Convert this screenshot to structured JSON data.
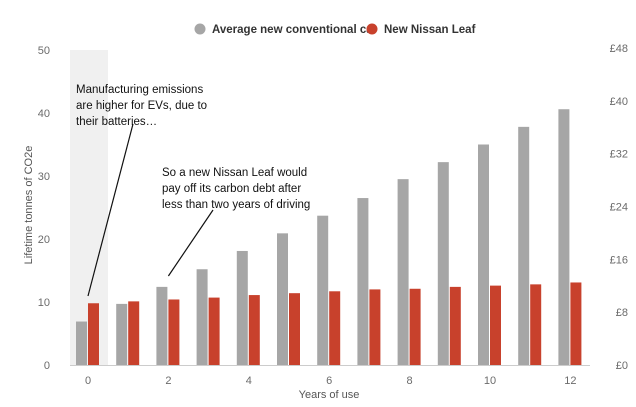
{
  "chart_data": {
    "type": "bar",
    "x": [
      0,
      1,
      2,
      3,
      4,
      5,
      6,
      7,
      8,
      9,
      10,
      11,
      12
    ],
    "xticks": [
      0,
      2,
      4,
      6,
      8,
      10,
      12
    ],
    "xlabel": "Years of use",
    "ylabel": "Lifetime tonnes of CO2e",
    "ylim": [
      0,
      50
    ],
    "yticks": [
      0,
      10,
      20,
      30,
      40,
      50
    ],
    "y2ticks": [
      "£0",
      "£8",
      "£16",
      "£24",
      "£32",
      "£40",
      "£48"
    ],
    "grid": false,
    "legend_position": "top-center",
    "series": [
      {
        "name": "Average new conventional car",
        "color": "#a6a6a6",
        "values": [
          6.9,
          9.7,
          12.4,
          15.2,
          18.1,
          20.9,
          23.7,
          26.5,
          29.5,
          32.2,
          35.0,
          37.8,
          40.6
        ]
      },
      {
        "name": "New Nissan Leaf",
        "color": "#c8412c",
        "values": [
          9.8,
          10.1,
          10.4,
          10.7,
          11.1,
          11.4,
          11.7,
          12.0,
          12.1,
          12.4,
          12.6,
          12.8,
          13.1
        ]
      }
    ],
    "annotations": [
      {
        "lines": [
          "Manufacturing emissions",
          "are higher for EVs, due to",
          "their batteries…"
        ],
        "target_x": 0
      },
      {
        "lines": [
          "So a new Nissan Leaf would",
          "pay off its carbon debt after",
          "less than two years of driving"
        ],
        "target_x": 2
      }
    ],
    "colors": {
      "highlight_band": "#f0f0f0",
      "axis": "#cccccc"
    }
  }
}
